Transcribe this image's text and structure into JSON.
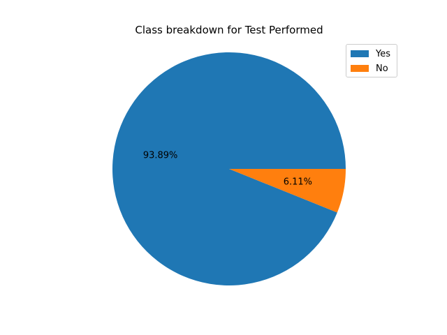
{
  "chart_data": {
    "type": "pie",
    "title": "Class breakdown for Test Performed",
    "slices": [
      {
        "label": "Yes",
        "value": 93.89,
        "pct_label": "93.89%",
        "color": "#1f77b4"
      },
      {
        "label": "No",
        "value": 6.11,
        "pct_label": "6.11%",
        "color": "#ff7f0e"
      }
    ],
    "legend": {
      "position": "top-right",
      "entries": [
        "Yes",
        "No"
      ]
    },
    "start_angle": 0,
    "direction": "counterclockwise"
  }
}
